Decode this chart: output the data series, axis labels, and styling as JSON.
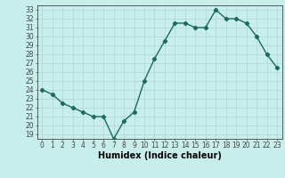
{
  "x": [
    0,
    1,
    2,
    3,
    4,
    5,
    6,
    7,
    8,
    9,
    10,
    11,
    12,
    13,
    14,
    15,
    16,
    17,
    18,
    19,
    20,
    21,
    22,
    23
  ],
  "y": [
    24.0,
    23.5,
    22.5,
    22.0,
    21.5,
    21.0,
    21.0,
    18.5,
    20.5,
    21.5,
    25.0,
    27.5,
    29.5,
    31.5,
    31.5,
    31.0,
    31.0,
    33.0,
    32.0,
    32.0,
    31.5,
    30.0,
    28.0,
    26.5
  ],
  "line_color": "#1a6b5a",
  "marker_color": "#1a6b5a",
  "bg_color": "#c8eeec",
  "grid_color": "#aad8d4",
  "axis_color": "#444444",
  "xlabel": "Humidex (Indice chaleur)",
  "ylabel": "",
  "xlim": [
    -0.5,
    23.5
  ],
  "ylim": [
    18.5,
    33.5
  ],
  "yticks": [
    19,
    20,
    21,
    22,
    23,
    24,
    25,
    26,
    27,
    28,
    29,
    30,
    31,
    32,
    33
  ],
  "xticks": [
    0,
    1,
    2,
    3,
    4,
    5,
    6,
    7,
    8,
    9,
    10,
    11,
    12,
    13,
    14,
    15,
    16,
    17,
    18,
    19,
    20,
    21,
    22,
    23
  ],
  "tick_fontsize": 5.5,
  "xlabel_fontsize": 7.0,
  "marker_size": 2.2,
  "line_width": 1.0
}
